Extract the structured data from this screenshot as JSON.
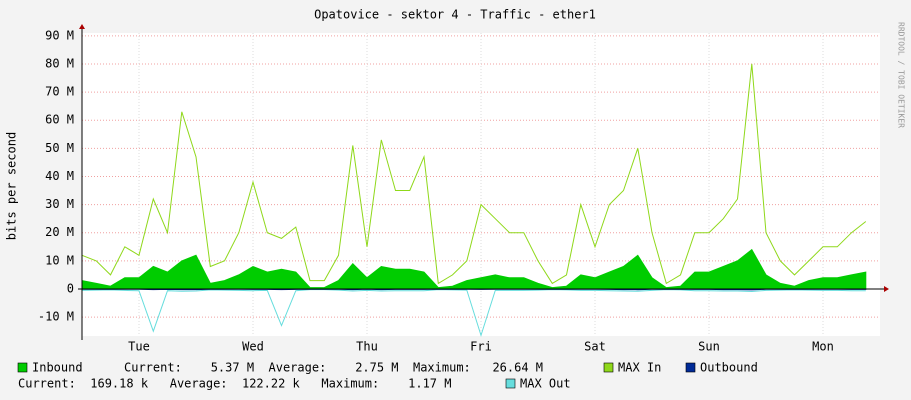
{
  "chart_data": {
    "type": "area",
    "title": "Opatovice - sektor 4 - Traffic - ether1",
    "y_label": "bits per second",
    "side_note": "RRDTOOL / TOBI OETIKER",
    "x": [
      0,
      3,
      6,
      9,
      12,
      15,
      18,
      21,
      24,
      27,
      30,
      33,
      36,
      39,
      42,
      45,
      48,
      51,
      54,
      57,
      60,
      63,
      66,
      69,
      72,
      75,
      78,
      81,
      84,
      87,
      90,
      93,
      96,
      99,
      102,
      105,
      108,
      111,
      114,
      117,
      120,
      123,
      126,
      129,
      132,
      135,
      138,
      141,
      144,
      147,
      150,
      153,
      156,
      159,
      162,
      165
    ],
    "xlim": [
      0,
      168
    ],
    "xticks": [
      {
        "value": 12,
        "label": "Tue"
      },
      {
        "value": 36,
        "label": "Wed"
      },
      {
        "value": 60,
        "label": "Thu"
      },
      {
        "value": 84,
        "label": "Fri"
      },
      {
        "value": 108,
        "label": "Sat"
      },
      {
        "value": 132,
        "label": "Sun"
      },
      {
        "value": 156,
        "label": "Mon"
      }
    ],
    "ylim": [
      -16.7,
      91
    ],
    "yticks": [
      {
        "value": -10,
        "label": "-10 M"
      },
      {
        "value": 0,
        "label": "0"
      },
      {
        "value": 10,
        "label": "10 M"
      },
      {
        "value": 20,
        "label": "20 M"
      },
      {
        "value": 30,
        "label": "30 M"
      },
      {
        "value": 40,
        "label": "40 M"
      },
      {
        "value": 50,
        "label": "50 M"
      },
      {
        "value": 60,
        "label": "60 M"
      },
      {
        "value": 70,
        "label": "70 M"
      },
      {
        "value": 80,
        "label": "80 M"
      },
      {
        "value": 90,
        "label": "90 M"
      }
    ],
    "grid": true,
    "series": [
      {
        "name": "MAX In",
        "color": "#8fd81a",
        "style": "line",
        "values": [
          12,
          10,
          5,
          15,
          12,
          32,
          20,
          63,
          47,
          8,
          10,
          20,
          38,
          20,
          18,
          22,
          3,
          3,
          12,
          51,
          15,
          53,
          35,
          35,
          47,
          2,
          5,
          10,
          30,
          25,
          20,
          20,
          10,
          2,
          5,
          30,
          15,
          30,
          35,
          50,
          20,
          2,
          5,
          20,
          20,
          25,
          32,
          80,
          20,
          10,
          5,
          10,
          15,
          15,
          20,
          24
        ]
      },
      {
        "name": "Inbound",
        "color": "#00cc00",
        "style": "area",
        "values": [
          3,
          2,
          1,
          4,
          4,
          8,
          6,
          10,
          12,
          2,
          3,
          5,
          8,
          6,
          7,
          6,
          0.5,
          0.5,
          3,
          9,
          4,
          8,
          7,
          7,
          6,
          0.5,
          1,
          3,
          4,
          5,
          4,
          4,
          2,
          0.5,
          1,
          5,
          4,
          6,
          8,
          12,
          4,
          0.5,
          1,
          6,
          6,
          8,
          10,
          14,
          5,
          2,
          1,
          3,
          4,
          4,
          5,
          6
        ]
      },
      {
        "name": "MAX Out",
        "color": "#66dddd",
        "style": "line",
        "values": [
          -0.5,
          -0.4,
          -0.3,
          -0.5,
          -0.6,
          -15,
          -0.6,
          -0.8,
          -0.7,
          -0.3,
          -0.4,
          -0.5,
          -0.6,
          -0.5,
          -13,
          -0.6,
          -0.2,
          -0.2,
          -0.4,
          -0.7,
          -0.5,
          -0.7,
          -0.6,
          -0.6,
          -0.6,
          -0.2,
          -0.3,
          -0.4,
          -16.5,
          -0.5,
          -0.5,
          -0.5,
          -0.4,
          -0.2,
          -0.3,
          -0.5,
          -0.5,
          -0.6,
          -0.7,
          -0.8,
          -0.5,
          -0.2,
          -0.3,
          -0.6,
          -0.6,
          -0.7,
          -0.7,
          -0.9,
          -0.5,
          -0.4,
          -0.3,
          -0.4,
          -0.5,
          -0.5,
          -0.6,
          -0.6
        ]
      },
      {
        "name": "Outbound",
        "color": "#002a97",
        "style": "area",
        "values": [
          -0.1,
          -0.1,
          -0.05,
          -0.1,
          -0.1,
          -0.2,
          -0.15,
          -0.2,
          -0.2,
          -0.05,
          -0.1,
          -0.1,
          -0.15,
          -0.15,
          -0.2,
          -0.15,
          -0.05,
          -0.05,
          -0.1,
          -0.2,
          -0.1,
          -0.2,
          -0.15,
          -0.15,
          -0.15,
          -0.05,
          -0.05,
          -0.1,
          -0.15,
          -0.1,
          -0.1,
          -0.1,
          -0.1,
          -0.05,
          -0.05,
          -0.1,
          -0.1,
          -0.15,
          -0.2,
          -0.25,
          -0.1,
          -0.05,
          -0.05,
          -0.15,
          -0.15,
          -0.2,
          -0.2,
          -0.3,
          -0.1,
          -0.1,
          -0.05,
          -0.1,
          -0.1,
          -0.1,
          -0.15,
          -0.15
        ]
      }
    ],
    "legend": [
      "Inbound",
      "MAX In",
      "Outbound",
      "MAX Out"
    ],
    "inbound_stats": "Current:    5.37 M  Average:    2.75 M  Maximum:   26.64 M",
    "outbound_stats": "Current:  169.18 k   Average:  122.22 k   Maximum:    1.17 M"
  }
}
